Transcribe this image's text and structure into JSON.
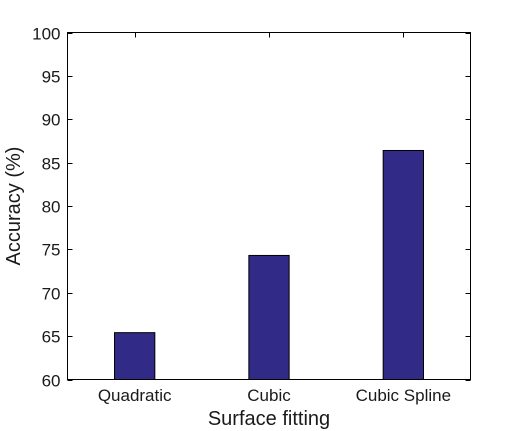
{
  "chart_data": {
    "type": "bar",
    "categories": [
      "Quadratic",
      "Cubic",
      "Cubic Spline"
    ],
    "values": [
      65.4,
      74.3,
      86.4
    ],
    "title": "",
    "xlabel": "Surface fitting",
    "ylabel": "Accuracy (%)",
    "ylim": [
      60,
      100
    ],
    "yticks": [
      "60",
      "65",
      "70",
      "75",
      "80",
      "85",
      "90",
      "95",
      "100"
    ],
    "grid": false,
    "legend": "none",
    "bar_color": "#322A87"
  }
}
